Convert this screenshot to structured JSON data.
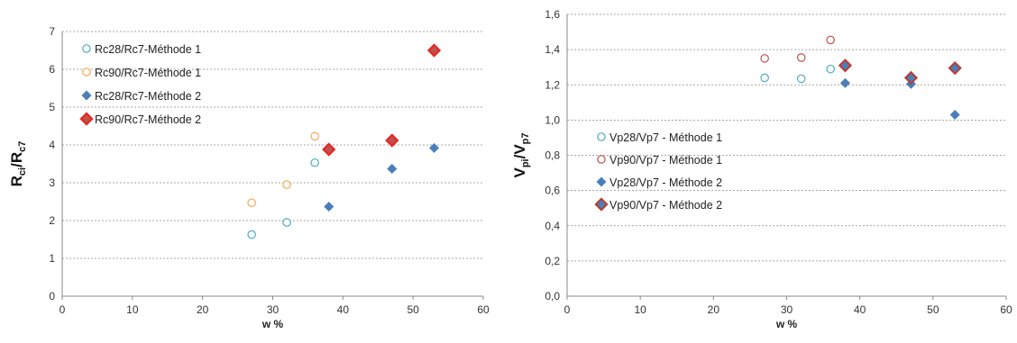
{
  "chart_data": [
    {
      "type": "scatter",
      "xlabel": "w %",
      "ylabel": {
        "main": "R",
        "sub1": "ci",
        "sep": "/R",
        "sub2": "c7"
      },
      "xlim": [
        0,
        60
      ],
      "ylim": [
        0,
        7
      ],
      "xticks": [
        "0",
        "10",
        "20",
        "30",
        "40",
        "50",
        "60"
      ],
      "yticks": [
        "0",
        "1",
        "2",
        "3",
        "4",
        "5",
        "6",
        "7"
      ],
      "grid": "horizontal",
      "legend_position": "top-left",
      "series": [
        {
          "name": "Rc28/Rc7-Méthode 1",
          "marker": "circle-open",
          "color": "#4bacc6",
          "points": [
            [
              27,
              1.63
            ],
            [
              32,
              1.95
            ],
            [
              36,
              3.53
            ]
          ]
        },
        {
          "name": "Rc90/Rc7-Méthode 1",
          "marker": "circle-open",
          "color": "#f5a855",
          "points": [
            [
              27,
              2.47
            ],
            [
              32,
              2.95
            ],
            [
              36,
              4.23
            ]
          ]
        },
        {
          "name": "Rc28/Rc7-Méthode 2",
          "marker": "diamond-filled",
          "color": "#4a7ebb",
          "points": [
            [
              38,
              2.37
            ],
            [
              47,
              3.37
            ],
            [
              53,
              3.92
            ]
          ]
        },
        {
          "name": "Rc90/Rc7-Méthode 2",
          "marker": "diamond-outlined",
          "color": "#c0504d",
          "fill": "#c0504d",
          "stroke": "#e8231e",
          "points": [
            [
              38,
              3.88
            ],
            [
              47,
              4.12
            ],
            [
              53,
              6.5
            ]
          ]
        }
      ]
    },
    {
      "type": "scatter",
      "xlabel": "w %",
      "ylabel": {
        "main": "V",
        "sub1": "pi",
        "sep": "/V",
        "sub2": "p7"
      },
      "xlim": [
        0,
        60
      ],
      "ylim": [
        0,
        1.6
      ],
      "xticks": [
        "0",
        "10",
        "20",
        "30",
        "40",
        "50",
        "60"
      ],
      "yticks": [
        "0,0",
        "0,2",
        "0,4",
        "0,6",
        "0,8",
        "1,0",
        "1,2",
        "1,4",
        "1,6"
      ],
      "grid": "horizontal",
      "legend_position": "center-left",
      "series": [
        {
          "name": "Vp28/Vp7 - Méthode 1",
          "marker": "circle-open",
          "color": "#4bacc6",
          "points": [
            [
              27,
              1.24
            ],
            [
              32,
              1.235
            ],
            [
              36,
              1.29
            ]
          ]
        },
        {
          "name": "Vp90/Vp7 - Méthode 1",
          "marker": "circle-open",
          "color": "#c0504d",
          "points": [
            [
              27,
              1.35
            ],
            [
              32,
              1.355
            ],
            [
              36,
              1.455
            ]
          ]
        },
        {
          "name": "Vp28/Vp7 - Méthode 2",
          "marker": "diamond-filled",
          "color": "#4a7ebb",
          "points": [
            [
              38,
              1.21
            ],
            [
              47,
              1.205
            ],
            [
              53,
              1.03
            ]
          ]
        },
        {
          "name": "Vp90/Vp7 - Méthode 2",
          "marker": "diamond-outlined",
          "color": "#4a7ebb",
          "fill": "#4a7ebb",
          "stroke": "#c0392b",
          "points": [
            [
              38,
              1.31
            ],
            [
              47,
              1.24
            ],
            [
              53,
              1.295
            ]
          ]
        }
      ]
    }
  ]
}
